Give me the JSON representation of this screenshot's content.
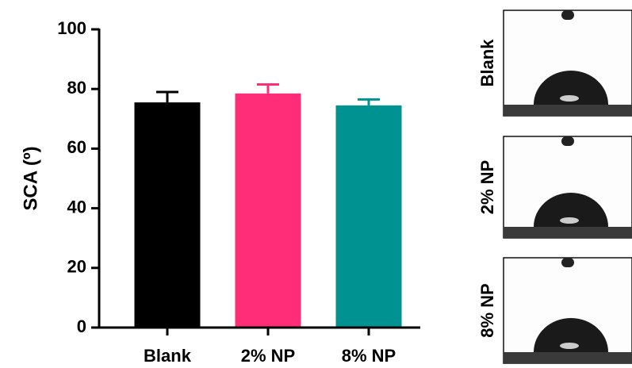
{
  "chart_data": {
    "type": "bar",
    "y_label": "SCA  (º)",
    "categories": [
      "Blank",
      "2% NP",
      "8% NP"
    ],
    "values": [
      75.5,
      78.5,
      74.5
    ],
    "errors": [
      3.5,
      3,
      2
    ],
    "colors": [
      "#000000",
      "#ff2d78",
      "#009290"
    ],
    "ylim": [
      0,
      100
    ],
    "yticks": [
      0,
      20,
      40,
      60,
      80,
      100
    ],
    "grid": false,
    "panel_labels": [
      "Blank",
      "2% NP",
      "8% NP"
    ]
  }
}
